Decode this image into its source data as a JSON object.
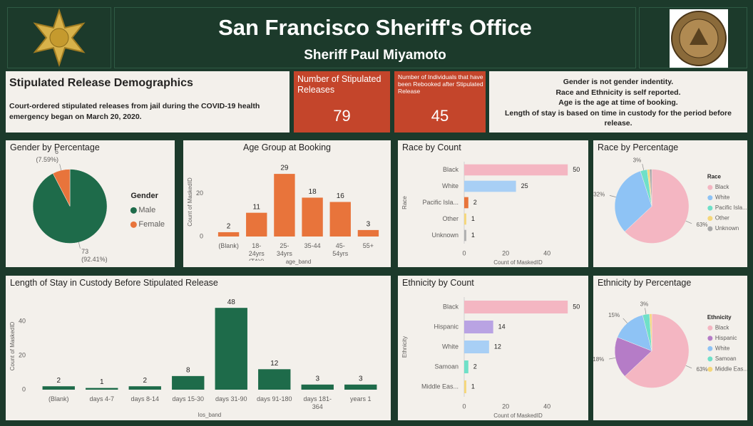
{
  "header": {
    "title": "San Francisco Sheriff's Office",
    "subtitle": "Sheriff Paul Miyamoto"
  },
  "intro": {
    "title": "Stipulated Release Demographics",
    "text": "Court-ordered stipulated releases from jail during the COVID-19 health emergency began on March 20, 2020."
  },
  "cards": [
    {
      "label": "Number of Stipulated Releases",
      "value": 79
    },
    {
      "label": "Number of Individuals that have been Rebooked after Stipulated Release",
      "value": 45
    }
  ],
  "notes": [
    "Gender is not gender indentity.",
    "Race and Ethnicity is self reported.",
    "Age is the age at time of booking.",
    "Length of stay is based on time in custody for the period before release."
  ],
  "chart_data": [
    {
      "type": "pie",
      "title": "Gender by Percentage",
      "legend_title": "Gender",
      "categories": [
        "Male",
        "Female"
      ],
      "values": [
        73,
        6
      ],
      "percent_labels": [
        "(92.41%)",
        "(7.59%)"
      ],
      "colors": [
        "#1e6b4a",
        "#e8743b"
      ]
    },
    {
      "type": "bar",
      "title": "Age Group at Booking",
      "categories": [
        "(Blank)",
        "18-24yrs (TAY)",
        "25-34yrs",
        "35-44",
        "45-54yrs",
        "55+"
      ],
      "values": [
        2,
        11,
        29,
        18,
        16,
        3
      ],
      "color": "#e8743b",
      "ylim": [
        0,
        32
      ],
      "yticks": [
        0,
        20
      ],
      "xlabel": "age_band",
      "ylabel": "Count of MaskedID"
    },
    {
      "type": "hbar",
      "title": "Race by Count",
      "categories": [
        "Black",
        "White",
        "Pacific Isla...",
        "Other",
        "Unknown"
      ],
      "values": [
        50,
        25,
        2,
        1,
        1
      ],
      "colors": [
        "#f4b6c2",
        "#a8cff5",
        "#e8743b",
        "#f5d77a",
        "#b0b0b0"
      ],
      "xlim": [
        0,
        52
      ],
      "xticks": [
        0,
        20,
        40
      ],
      "xlabel": "Count of MaskedID",
      "ylabel": "Race"
    },
    {
      "type": "pie",
      "title": "Race by Percentage",
      "legend_title": "Race",
      "categories": [
        "Black",
        "White",
        "Pacific Isla...",
        "Other",
        "Unknown"
      ],
      "values": [
        63,
        32,
        3,
        1,
        1
      ],
      "value_labels": [
        "63%",
        "32%",
        "3%",
        null,
        null
      ],
      "colors": [
        "#f4b6c2",
        "#8ec3f5",
        "#6fe0c8",
        "#f5d77a",
        "#a8a8a8"
      ]
    },
    {
      "type": "bar",
      "title": "Length of Stay in Custody Before Stipulated Release",
      "categories": [
        "(Blank)",
        "days 4-7",
        "days 8-14",
        "days 15-30",
        "days 31-90",
        "days 91-180",
        "days 181-364",
        "years 1"
      ],
      "values": [
        2,
        1,
        2,
        8,
        48,
        12,
        3,
        3
      ],
      "color": "#1e6b4a",
      "ylim": [
        0,
        51
      ],
      "yticks": [
        0,
        20,
        40
      ],
      "xlabel": "los_band",
      "ylabel": "Count of MaskedID"
    },
    {
      "type": "hbar",
      "title": "Ethnicity by Count",
      "categories": [
        "Black",
        "Hispanic",
        "White",
        "Samoan",
        "Middle Eas..."
      ],
      "values": [
        50,
        14,
        12,
        2,
        1
      ],
      "colors": [
        "#f4b6c2",
        "#b9a3e3",
        "#a8cff5",
        "#6fe0c8",
        "#f5d77a"
      ],
      "xlim": [
        0,
        52
      ],
      "xticks": [
        0,
        20,
        40
      ],
      "xlabel": "Count of MaskedID",
      "ylabel": "Ethnicity"
    },
    {
      "type": "pie",
      "title": "Ethnicity by Percentage",
      "legend_title": "Ethnicity",
      "categories": [
        "Black",
        "Hispanic",
        "White",
        "Samoan",
        "Middle Eas..."
      ],
      "values": [
        63,
        18,
        15,
        3,
        1
      ],
      "value_labels": [
        "63%",
        "18%",
        "15%",
        "3%",
        null
      ],
      "colors": [
        "#f4b6c2",
        "#b57cc7",
        "#8ec3f5",
        "#6fe0c8",
        "#f5d77a"
      ]
    }
  ]
}
